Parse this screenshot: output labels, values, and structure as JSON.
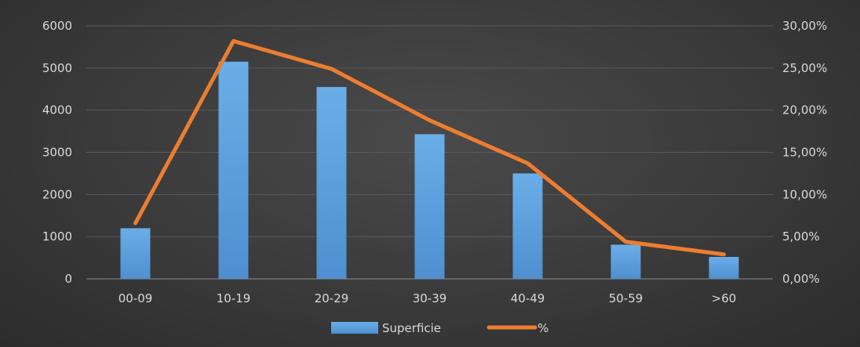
{
  "chart_data": {
    "type": "bar",
    "categories": [
      "00-09",
      "10-19",
      "20-29",
      "30-39",
      "40-49",
      "50-59",
      ">60"
    ],
    "series": [
      {
        "name": "Superficie",
        "type": "bar",
        "axis": "left",
        "color": "#5b9bd5",
        "values": [
          1200,
          5150,
          4550,
          3430,
          2500,
          810,
          520
        ]
      },
      {
        "name": "%",
        "type": "line",
        "axis": "right",
        "color": "#ed7d31",
        "values": [
          6.6,
          28.2,
          24.9,
          18.8,
          13.7,
          4.4,
          2.9
        ]
      }
    ],
    "y_left": {
      "ylim": [
        0,
        6000
      ],
      "ticks": [
        0,
        1000,
        2000,
        3000,
        4000,
        5000,
        6000
      ],
      "tick_labels": [
        "0",
        "1000",
        "2000",
        "3000",
        "4000",
        "5000",
        "6000"
      ]
    },
    "y_right": {
      "ylim": [
        0,
        30
      ],
      "ticks": [
        0,
        5,
        10,
        15,
        20,
        25,
        30
      ],
      "tick_labels": [
        "0,00%",
        "5,00%",
        "10,00%",
        "15,00%",
        "20,00%",
        "25,00%",
        "30,00%"
      ]
    },
    "title": "",
    "xlabel": "",
    "ylabel": "",
    "grid": true,
    "legend_position": "bottom",
    "background": "#3a3a3a"
  }
}
